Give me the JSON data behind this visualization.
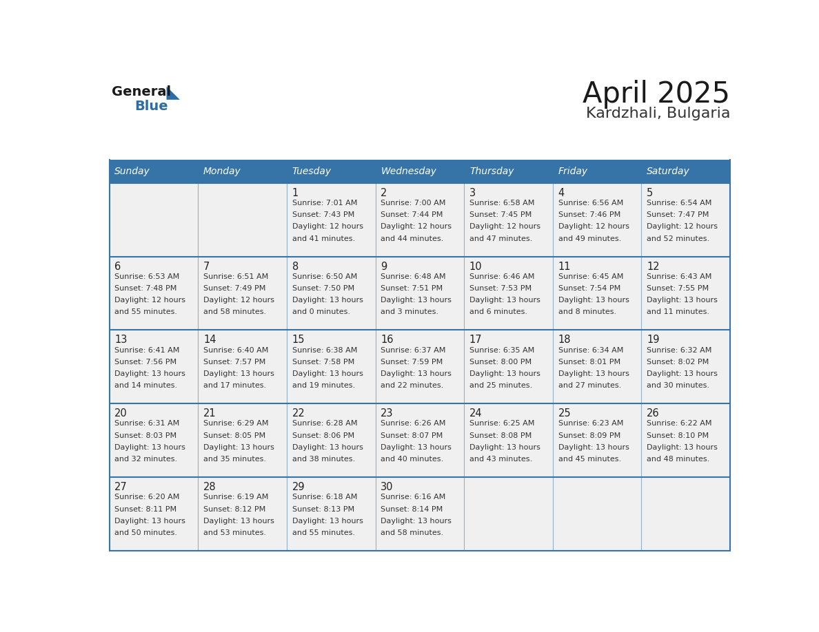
{
  "title": "April 2025",
  "subtitle": "Kardzhali, Bulgaria",
  "days_of_week": [
    "Sunday",
    "Monday",
    "Tuesday",
    "Wednesday",
    "Thursday",
    "Friday",
    "Saturday"
  ],
  "header_bg": "#3674a8",
  "header_text": "#FFFFFF",
  "row_bg": "#f0f0f0",
  "cell_text_color": "#333333",
  "day_num_color": "#222222",
  "grid_color": "#3674a8",
  "title_color": "#1a1a1a",
  "subtitle_color": "#333333",
  "logo_general_color": "#1a1a1a",
  "logo_blue_color": "#2E6DA4",
  "weeks": [
    [
      {
        "day": null,
        "sunrise": null,
        "sunset": null,
        "daylight_h": null,
        "daylight_m": null
      },
      {
        "day": null,
        "sunrise": null,
        "sunset": null,
        "daylight_h": null,
        "daylight_m": null
      },
      {
        "day": 1,
        "sunrise": "7:01 AM",
        "sunset": "7:43 PM",
        "daylight_h": "12 hours",
        "daylight_m": "41 minutes."
      },
      {
        "day": 2,
        "sunrise": "7:00 AM",
        "sunset": "7:44 PM",
        "daylight_h": "12 hours",
        "daylight_m": "44 minutes."
      },
      {
        "day": 3,
        "sunrise": "6:58 AM",
        "sunset": "7:45 PM",
        "daylight_h": "12 hours",
        "daylight_m": "47 minutes."
      },
      {
        "day": 4,
        "sunrise": "6:56 AM",
        "sunset": "7:46 PM",
        "daylight_h": "12 hours",
        "daylight_m": "49 minutes."
      },
      {
        "day": 5,
        "sunrise": "6:54 AM",
        "sunset": "7:47 PM",
        "daylight_h": "12 hours",
        "daylight_m": "52 minutes."
      }
    ],
    [
      {
        "day": 6,
        "sunrise": "6:53 AM",
        "sunset": "7:48 PM",
        "daylight_h": "12 hours",
        "daylight_m": "55 minutes."
      },
      {
        "day": 7,
        "sunrise": "6:51 AM",
        "sunset": "7:49 PM",
        "daylight_h": "12 hours",
        "daylight_m": "58 minutes."
      },
      {
        "day": 8,
        "sunrise": "6:50 AM",
        "sunset": "7:50 PM",
        "daylight_h": "13 hours",
        "daylight_m": "0 minutes."
      },
      {
        "day": 9,
        "sunrise": "6:48 AM",
        "sunset": "7:51 PM",
        "daylight_h": "13 hours",
        "daylight_m": "3 minutes."
      },
      {
        "day": 10,
        "sunrise": "6:46 AM",
        "sunset": "7:53 PM",
        "daylight_h": "13 hours",
        "daylight_m": "6 minutes."
      },
      {
        "day": 11,
        "sunrise": "6:45 AM",
        "sunset": "7:54 PM",
        "daylight_h": "13 hours",
        "daylight_m": "8 minutes."
      },
      {
        "day": 12,
        "sunrise": "6:43 AM",
        "sunset": "7:55 PM",
        "daylight_h": "13 hours",
        "daylight_m": "11 minutes."
      }
    ],
    [
      {
        "day": 13,
        "sunrise": "6:41 AM",
        "sunset": "7:56 PM",
        "daylight_h": "13 hours",
        "daylight_m": "14 minutes."
      },
      {
        "day": 14,
        "sunrise": "6:40 AM",
        "sunset": "7:57 PM",
        "daylight_h": "13 hours",
        "daylight_m": "17 minutes."
      },
      {
        "day": 15,
        "sunrise": "6:38 AM",
        "sunset": "7:58 PM",
        "daylight_h": "13 hours",
        "daylight_m": "19 minutes."
      },
      {
        "day": 16,
        "sunrise": "6:37 AM",
        "sunset": "7:59 PM",
        "daylight_h": "13 hours",
        "daylight_m": "22 minutes."
      },
      {
        "day": 17,
        "sunrise": "6:35 AM",
        "sunset": "8:00 PM",
        "daylight_h": "13 hours",
        "daylight_m": "25 minutes."
      },
      {
        "day": 18,
        "sunrise": "6:34 AM",
        "sunset": "8:01 PM",
        "daylight_h": "13 hours",
        "daylight_m": "27 minutes."
      },
      {
        "day": 19,
        "sunrise": "6:32 AM",
        "sunset": "8:02 PM",
        "daylight_h": "13 hours",
        "daylight_m": "30 minutes."
      }
    ],
    [
      {
        "day": 20,
        "sunrise": "6:31 AM",
        "sunset": "8:03 PM",
        "daylight_h": "13 hours",
        "daylight_m": "32 minutes."
      },
      {
        "day": 21,
        "sunrise": "6:29 AM",
        "sunset": "8:05 PM",
        "daylight_h": "13 hours",
        "daylight_m": "35 minutes."
      },
      {
        "day": 22,
        "sunrise": "6:28 AM",
        "sunset": "8:06 PM",
        "daylight_h": "13 hours",
        "daylight_m": "38 minutes."
      },
      {
        "day": 23,
        "sunrise": "6:26 AM",
        "sunset": "8:07 PM",
        "daylight_h": "13 hours",
        "daylight_m": "40 minutes."
      },
      {
        "day": 24,
        "sunrise": "6:25 AM",
        "sunset": "8:08 PM",
        "daylight_h": "13 hours",
        "daylight_m": "43 minutes."
      },
      {
        "day": 25,
        "sunrise": "6:23 AM",
        "sunset": "8:09 PM",
        "daylight_h": "13 hours",
        "daylight_m": "45 minutes."
      },
      {
        "day": 26,
        "sunrise": "6:22 AM",
        "sunset": "8:10 PM",
        "daylight_h": "13 hours",
        "daylight_m": "48 minutes."
      }
    ],
    [
      {
        "day": 27,
        "sunrise": "6:20 AM",
        "sunset": "8:11 PM",
        "daylight_h": "13 hours",
        "daylight_m": "50 minutes."
      },
      {
        "day": 28,
        "sunrise": "6:19 AM",
        "sunset": "8:12 PM",
        "daylight_h": "13 hours",
        "daylight_m": "53 minutes."
      },
      {
        "day": 29,
        "sunrise": "6:18 AM",
        "sunset": "8:13 PM",
        "daylight_h": "13 hours",
        "daylight_m": "55 minutes."
      },
      {
        "day": 30,
        "sunrise": "6:16 AM",
        "sunset": "8:14 PM",
        "daylight_h": "13 hours",
        "daylight_m": "58 minutes."
      },
      {
        "day": null,
        "sunrise": null,
        "sunset": null,
        "daylight_h": null,
        "daylight_m": null
      },
      {
        "day": null,
        "sunrise": null,
        "sunset": null,
        "daylight_h": null,
        "daylight_m": null
      },
      {
        "day": null,
        "sunrise": null,
        "sunset": null,
        "daylight_h": null,
        "daylight_m": null
      }
    ]
  ]
}
